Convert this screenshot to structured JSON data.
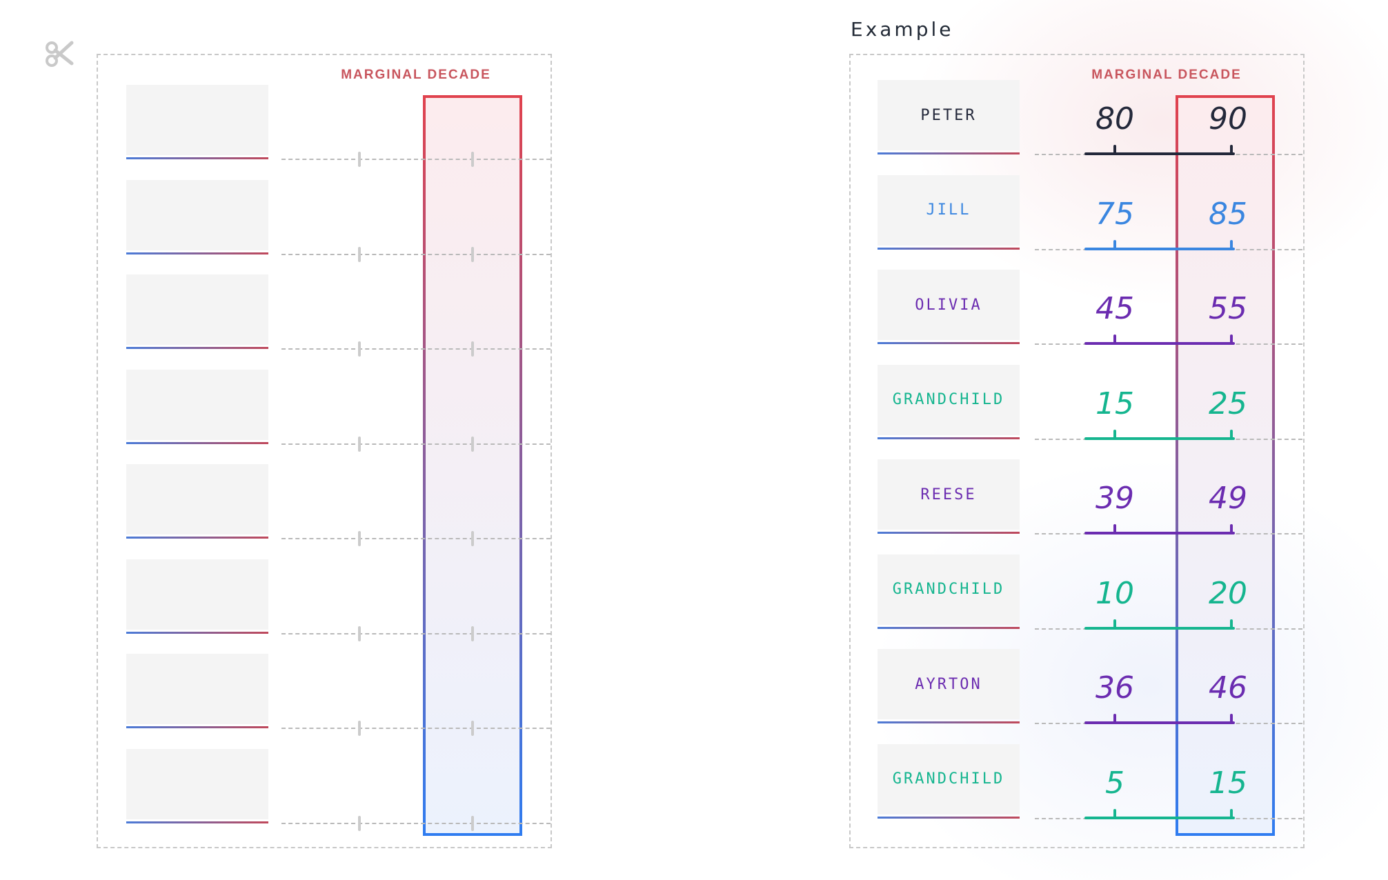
{
  "header_label": "MARGINAL DECADE",
  "example_title": "Example",
  "colors": {
    "black": "#23283a",
    "blue": "#3a86e0",
    "purple": "#6b2cb0",
    "teal": "#15b58f"
  },
  "left_rows": 8,
  "example_rows": [
    {
      "name": "PETER",
      "start": "80",
      "end": "90",
      "color": "black"
    },
    {
      "name": "JILL",
      "start": "75",
      "end": "85",
      "color": "blue"
    },
    {
      "name": "OLIVIA",
      "start": "45",
      "end": "55",
      "color": "purple"
    },
    {
      "name": "GRANDCHILD",
      "start": "15",
      "end": "25",
      "color": "teal"
    },
    {
      "name": "REESE",
      "start": "39",
      "end": "49",
      "color": "purple"
    },
    {
      "name": "GRANDCHILD",
      "start": "10",
      "end": "20",
      "color": "teal"
    },
    {
      "name": "AYRTON",
      "start": "36",
      "end": "46",
      "color": "purple"
    },
    {
      "name": "GRANDCHILD",
      "start": "5",
      "end": "15",
      "color": "teal"
    }
  ]
}
